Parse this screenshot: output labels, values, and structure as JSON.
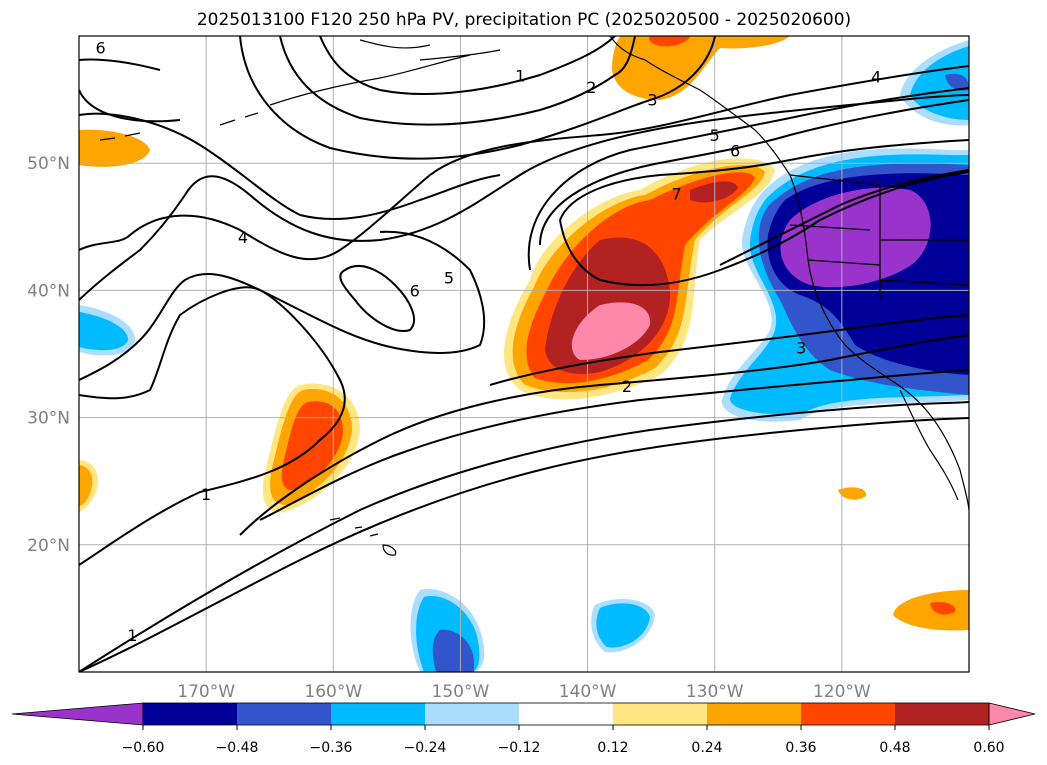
{
  "title": "2025013100 F120 250 hPa PV, precipitation PC (2025020500 - 2025020600)",
  "map": {
    "extent": {
      "lon": [
        -180,
        -110
      ],
      "lat": [
        10,
        60
      ]
    },
    "lat_labels": [
      {
        "lat": 50,
        "text": "50°N"
      },
      {
        "lat": 40,
        "text": "40°N"
      },
      {
        "lat": 30,
        "text": "30°N"
      },
      {
        "lat": 20,
        "text": "20°N"
      }
    ],
    "lon_labels": [
      {
        "lon": -170,
        "text": "170°W"
      },
      {
        "lon": -160,
        "text": "160°W"
      },
      {
        "lon": -150,
        "text": "150°W"
      },
      {
        "lon": -140,
        "text": "140°W"
      },
      {
        "lon": -130,
        "text": "130°W"
      },
      {
        "lon": -120,
        "text": "120°W"
      }
    ],
    "grid": true
  },
  "colorbar": {
    "colors": [
      "#9933cc",
      "#000099",
      "#3355cc",
      "#00bbff",
      "#aaddff",
      "#ffffff",
      "#ffe680",
      "#ffa500",
      "#ff4500",
      "#b22222",
      "#ff88aa"
    ],
    "ticks": [
      "−0.60",
      "−0.48",
      "−0.36",
      "−0.24",
      "−0.12",
      "0.12",
      "0.24",
      "0.36",
      "0.48",
      "0.60"
    ],
    "extend": "both"
  },
  "pv_contour_labels": [
    {
      "text": "6",
      "lon": -178.3,
      "lat": 59.1
    },
    {
      "text": "1",
      "lon": -145.3,
      "lat": 56.9
    },
    {
      "text": "2",
      "lon": -139.7,
      "lat": 56.0
    },
    {
      "text": "3",
      "lon": -134.9,
      "lat": 55.0
    },
    {
      "text": "4",
      "lon": -117.3,
      "lat": 56.8
    },
    {
      "text": "5",
      "lon": -130.0,
      "lat": 52.2
    },
    {
      "text": "6",
      "lon": -128.4,
      "lat": 51.0
    },
    {
      "text": "7",
      "lon": -133.0,
      "lat": 47.6
    },
    {
      "text": "4",
      "lon": -167.1,
      "lat": 44.2
    },
    {
      "text": "5",
      "lon": -150.9,
      "lat": 41.0
    },
    {
      "text": "6",
      "lon": -153.6,
      "lat": 40.0
    },
    {
      "text": "3",
      "lon": -123.2,
      "lat": 35.5
    },
    {
      "text": "2",
      "lon": -136.9,
      "lat": 32.5
    },
    {
      "text": "1",
      "lon": -170.0,
      "lat": 24.0
    },
    {
      "text": "1",
      "lon": -175.8,
      "lat": 12.9
    }
  ],
  "precip_pc_regions": [
    {
      "level": 0.12,
      "color": "#ffe680"
    },
    {
      "level": 0.24,
      "color": "#ffa500"
    },
    {
      "level": 0.36,
      "color": "#ff4500"
    },
    {
      "level": 0.48,
      "color": "#b22222"
    },
    {
      "level": 0.6,
      "color": "#ff88aa"
    },
    {
      "level": -0.12,
      "color": "#aaddff"
    },
    {
      "level": -0.24,
      "color": "#00bbff"
    },
    {
      "level": -0.36,
      "color": "#3355cc"
    },
    {
      "level": -0.48,
      "color": "#000099"
    },
    {
      "level": -0.6,
      "color": "#9933cc"
    }
  ]
}
